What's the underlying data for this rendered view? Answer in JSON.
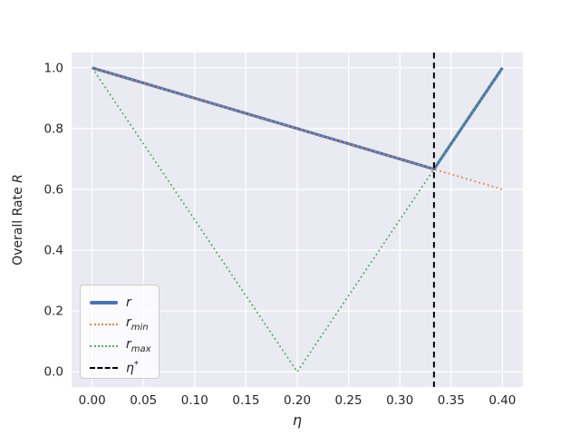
{
  "figure": {
    "background": "#ffffff",
    "plot_background": "#eaeaf2",
    "grid_color": "#ffffff",
    "text_color": "#262626"
  },
  "chart_data": {
    "type": "line",
    "title": "",
    "xlabel": "η",
    "ylabel": "Overall Rate R",
    "ylabel_parts": {
      "prefix": "Overall Rate ",
      "italic": "R"
    },
    "xlim": [
      -0.02,
      0.42
    ],
    "ylim": [
      -0.05,
      1.05
    ],
    "xticks": [
      "0.00",
      "0.05",
      "0.10",
      "0.15",
      "0.20",
      "0.25",
      "0.30",
      "0.35",
      "0.40"
    ],
    "yticks": [
      "0.0",
      "0.2",
      "0.4",
      "0.6",
      "0.8",
      "1.0"
    ],
    "grid": true,
    "legend_position": "lower left",
    "eta_star": 0.3333,
    "series": [
      {
        "name": "r",
        "color": "#4c72b0",
        "style": "solid",
        "width": 3.2,
        "x": [
          0,
          0.3333,
          0.4
        ],
        "y": [
          1.0,
          0.6667,
          1.0
        ]
      },
      {
        "name": "r_min",
        "color": "#dd8452",
        "style": "dotted",
        "width": 1.8,
        "x": [
          0,
          0.4
        ],
        "y": [
          1.0,
          0.6
        ]
      },
      {
        "name": "r_max",
        "color": "#55a868",
        "style": "dotted",
        "width": 1.8,
        "x": [
          0,
          0.2,
          0.4
        ],
        "y": [
          1.0,
          0.0,
          1.0
        ]
      },
      {
        "name": "eta-star",
        "color": "#000000",
        "style": "dashed",
        "width": 2,
        "vertical_at": 0.3333
      }
    ],
    "legend": [
      {
        "main": "r",
        "sub": "",
        "sup": "",
        "swatch": "solid",
        "color": "#4c72b0"
      },
      {
        "main": "r",
        "sub": "min",
        "sup": "",
        "swatch": "dotted",
        "color": "#dd8452"
      },
      {
        "main": "r",
        "sub": "max",
        "sup": "",
        "swatch": "dotted",
        "color": "#55a868"
      },
      {
        "main": "η",
        "sub": "",
        "sup": "*",
        "swatch": "dashed",
        "color": "#000000"
      }
    ]
  }
}
